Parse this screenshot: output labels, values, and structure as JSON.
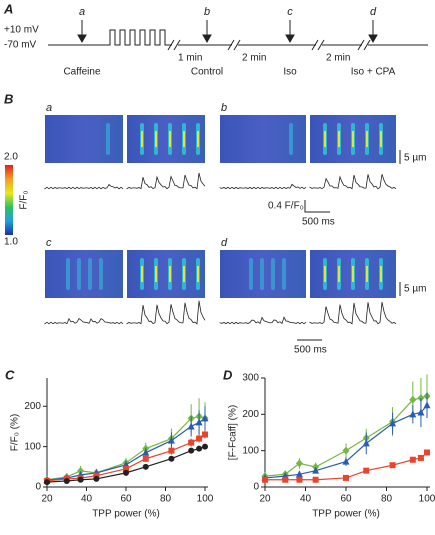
{
  "panel_a": {
    "label": "A",
    "voltages": [
      "+10 mV",
      "-70 mV"
    ],
    "markers": [
      "a",
      "b",
      "c",
      "d"
    ],
    "intervals": [
      "1 min",
      "2 min",
      "2 min"
    ],
    "conditions": [
      "Caffeine",
      "Control",
      "Iso",
      "Iso + CPA"
    ]
  },
  "panel_b": {
    "label": "B",
    "subpanels": [
      "a",
      "b",
      "c",
      "d"
    ],
    "colorbar": {
      "label": "F/F₀",
      "max": "2.0",
      "min": "1.0"
    },
    "scale_bars": [
      "5 µm",
      "0.4 F/F₀",
      "500 ms",
      "5 µm",
      "500 ms"
    ]
  },
  "chart_data": [
    {
      "type": "line",
      "label": "C",
      "xlabel": "TPP power (%)",
      "ylabel": "F/F₀ (%)",
      "xlim": [
        20,
        100
      ],
      "xticks": [
        20,
        40,
        60,
        80,
        100
      ],
      "ylim": [
        0,
        270
      ],
      "yticks": [
        0,
        100,
        200
      ],
      "series": [
        {
          "color": "#72b843",
          "marker": "diamond",
          "x": [
            20,
            30,
            37,
            45,
            60,
            70,
            83,
            93,
            97,
            100
          ],
          "values": [
            18,
            25,
            40,
            35,
            60,
            95,
            120,
            170,
            175,
            170
          ],
          "errors": [
            5,
            8,
            12,
            10,
            12,
            15,
            25,
            35,
            45,
            40
          ]
        },
        {
          "color": "#2b5cb3",
          "marker": "triangle",
          "x": [
            20,
            30,
            37,
            45,
            60,
            70,
            83,
            93,
            97,
            100
          ],
          "values": [
            17,
            22,
            30,
            35,
            55,
            85,
            115,
            150,
            160,
            170
          ],
          "errors": [
            4,
            6,
            8,
            8,
            10,
            12,
            20,
            25,
            30,
            30
          ]
        },
        {
          "color": "#e8452c",
          "marker": "square",
          "x": [
            20,
            30,
            37,
            45,
            60,
            70,
            83,
            93,
            97,
            100
          ],
          "values": [
            15,
            20,
            22,
            28,
            45,
            70,
            90,
            110,
            120,
            130
          ],
          "errors": [
            3,
            4,
            4,
            5,
            6,
            8,
            10,
            10,
            10,
            10
          ]
        },
        {
          "color": "#222222",
          "marker": "circle",
          "x": [
            20,
            30,
            37,
            45,
            60,
            70,
            83,
            93,
            97,
            100
          ],
          "values": [
            12,
            15,
            18,
            20,
            35,
            50,
            70,
            90,
            95,
            100
          ],
          "errors": [
            2,
            3,
            3,
            3,
            4,
            5,
            6,
            6,
            6,
            6
          ]
        }
      ]
    },
    {
      "type": "line",
      "label": "D",
      "xlabel": "TPP power (%)",
      "ylabel": "[F-Fcaff] (%)",
      "xlim": [
        20,
        100
      ],
      "xticks": [
        20,
        40,
        60,
        80,
        100
      ],
      "ylim": [
        0,
        300
      ],
      "yticks": [
        0,
        100,
        200,
        300
      ],
      "series": [
        {
          "color": "#72b843",
          "marker": "diamond",
          "x": [
            20,
            30,
            37,
            45,
            60,
            70,
            83,
            93,
            97,
            100
          ],
          "values": [
            30,
            35,
            65,
            55,
            100,
            135,
            180,
            240,
            245,
            250
          ],
          "errors": [
            8,
            10,
            15,
            12,
            20,
            25,
            40,
            50,
            55,
            60
          ]
        },
        {
          "color": "#2b5cb3",
          "marker": "triangle",
          "x": [
            20,
            30,
            37,
            45,
            60,
            70,
            83,
            93,
            97,
            100
          ],
          "values": [
            25,
            30,
            35,
            45,
            70,
            120,
            175,
            200,
            205,
            225
          ],
          "errors": [
            5,
            6,
            8,
            8,
            12,
            30,
            30,
            25,
            40,
            35
          ]
        },
        {
          "color": "#e8452c",
          "marker": "square",
          "x": [
            20,
            30,
            37,
            45,
            60,
            70,
            83,
            93,
            97,
            100
          ],
          "values": [
            20,
            20,
            20,
            20,
            25,
            45,
            60,
            75,
            80,
            95
          ],
          "errors": [
            3,
            3,
            3,
            3,
            4,
            6,
            6,
            8,
            8,
            8
          ]
        }
      ]
    }
  ]
}
